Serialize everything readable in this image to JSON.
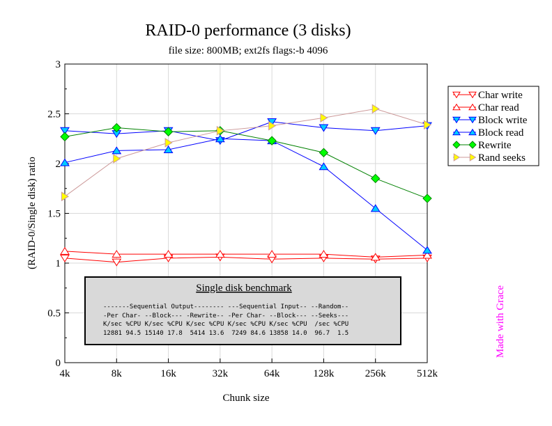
{
  "chart_data": {
    "type": "line",
    "title": "RAID-0 performance (3 disks)",
    "subtitle": "file size: 800MB; ext2fs flags:-b 4096",
    "xlabel": "Chunk size",
    "ylabel": "(RAID-0/Single disk) ratio",
    "categories": [
      "4k",
      "8k",
      "16k",
      "32k",
      "64k",
      "128k",
      "256k",
      "512k"
    ],
    "ylim": [
      0,
      3
    ],
    "yticks": [
      0,
      0.5,
      1,
      1.5,
      2,
      2.5,
      3
    ],
    "ytick_labels": [
      "0",
      "0.5",
      "1",
      "1.5",
      "2",
      "2.5",
      "3"
    ],
    "grid": true,
    "legend_position": "right",
    "series": [
      {
        "name": "Char write",
        "marker": "triangle-down",
        "color": "#ff0000",
        "fill": "#ffffff",
        "values": [
          1.05,
          1.01,
          1.05,
          1.06,
          1.04,
          1.05,
          1.04,
          1.05
        ]
      },
      {
        "name": "Char read",
        "marker": "triangle-up",
        "color": "#ff0000",
        "fill": "#ffffff",
        "values": [
          1.12,
          1.09,
          1.09,
          1.09,
          1.09,
          1.09,
          1.06,
          1.08
        ]
      },
      {
        "name": "Block write",
        "marker": "triangle-down",
        "color": "#0000ff",
        "fill": "#00ccff",
        "values": [
          2.33,
          2.3,
          2.33,
          2.23,
          2.42,
          2.36,
          2.33,
          2.38
        ]
      },
      {
        "name": "Block read",
        "marker": "triangle-up",
        "color": "#0000ff",
        "fill": "#00ccff",
        "values": [
          2.01,
          2.13,
          2.14,
          2.25,
          2.23,
          1.97,
          1.55,
          1.13
        ]
      },
      {
        "name": "Rewrite",
        "marker": "diamond",
        "color": "#008000",
        "fill": "#00ff00",
        "values": [
          2.27,
          2.36,
          2.32,
          2.33,
          2.23,
          2.11,
          1.85,
          1.65
        ]
      },
      {
        "name": "Rand seeks",
        "marker": "triangle-right",
        "color": "#cc9999",
        "fill": "#ffff00",
        "values": [
          1.67,
          2.05,
          2.21,
          2.33,
          2.38,
          2.46,
          2.55,
          2.39
        ]
      }
    ],
    "annotation_box": {
      "title": "Single disk benchmark",
      "lines": [
        "-------Sequential Output-------- ---Sequential Input-- --Random--",
        "-Per Char- --Block--- -Rewrite-- -Per Char- --Block--- --Seeks---",
        "K/sec %CPU K/sec %CPU K/sec %CPU K/sec %CPU K/sec %CPU  /sec %CPU",
        "12881 94.5 15140 17.8  5414 13.6  7249 84.6 13858 14.0  96.7  1.5"
      ]
    },
    "watermark": "Made with Grace"
  }
}
